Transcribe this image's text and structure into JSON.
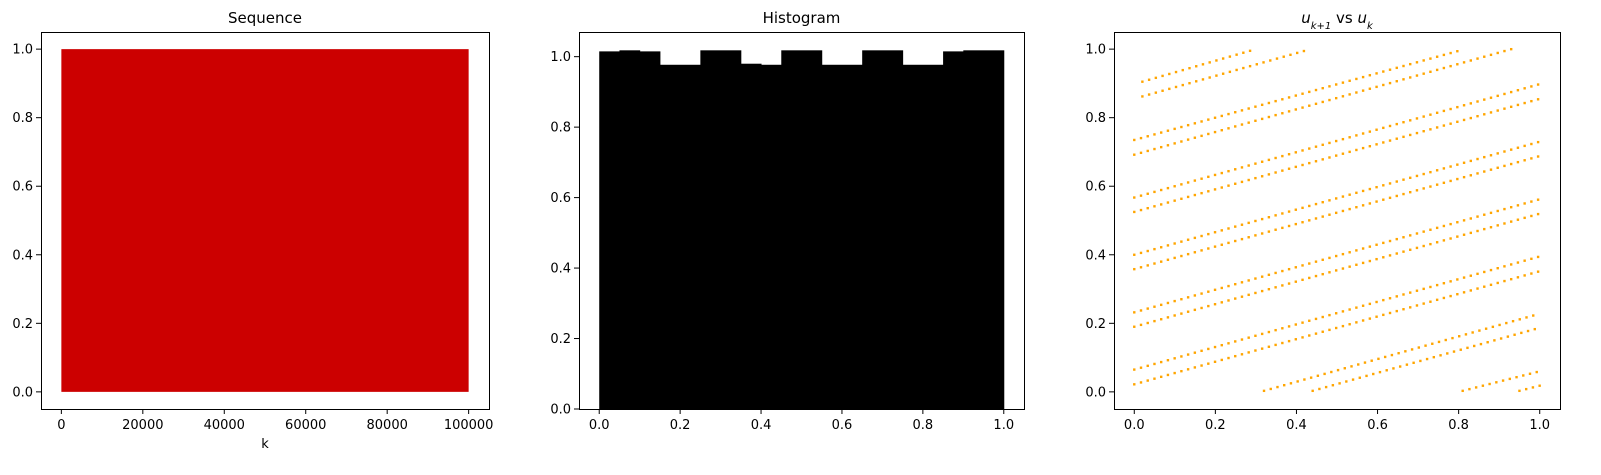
{
  "chart_data": [
    {
      "type": "area",
      "title": "Sequence",
      "xlabel": "k",
      "ylabel": "",
      "xlim": [
        -5000,
        105000
      ],
      "ylim": [
        -0.05,
        1.05
      ],
      "xticks": [
        0,
        20000,
        40000,
        60000,
        80000,
        100000
      ],
      "xtick_labels": [
        "0",
        "20000",
        "40000",
        "60000",
        "80000",
        "100000"
      ],
      "yticks": [
        0.0,
        0.2,
        0.4,
        0.6,
        0.8,
        1.0
      ],
      "ytick_labels": [
        "0.0",
        "0.2",
        "0.4",
        "0.6",
        "0.8",
        "1.0"
      ],
      "series": [
        {
          "x_range": [
            0,
            100000
          ],
          "y_range": [
            0.0,
            1.0
          ]
        }
      ],
      "color": "#cc0000",
      "grid": false
    },
    {
      "type": "bar",
      "title": "Histogram",
      "xlabel": "",
      "ylabel": "",
      "xlim": [
        -0.05,
        1.05
      ],
      "ylim": [
        0.0,
        1.07
      ],
      "xticks": [
        0.0,
        0.2,
        0.4,
        0.6,
        0.8,
        1.0
      ],
      "xtick_labels": [
        "0.0",
        "0.2",
        "0.4",
        "0.6",
        "0.8",
        "1.0"
      ],
      "yticks": [
        0.0,
        0.2,
        0.4,
        0.6,
        0.8,
        1.0
      ],
      "ytick_labels": [
        "0.0",
        "0.2",
        "0.4",
        "0.6",
        "0.8",
        "1.0"
      ],
      "bins": [
        [
          0.0,
          0.05,
          1.015
        ],
        [
          0.05,
          0.1,
          1.018
        ],
        [
          0.1,
          0.15,
          1.015
        ],
        [
          0.15,
          0.25,
          0.977
        ],
        [
          0.25,
          0.35,
          1.018
        ],
        [
          0.35,
          0.4,
          0.98
        ],
        [
          0.4,
          0.45,
          0.977
        ],
        [
          0.45,
          0.55,
          1.018
        ],
        [
          0.55,
          0.65,
          0.977
        ],
        [
          0.65,
          0.75,
          1.018
        ],
        [
          0.75,
          0.85,
          0.977
        ],
        [
          0.85,
          0.9,
          1.015
        ],
        [
          0.9,
          1.0,
          1.018
        ]
      ],
      "color": "#000000",
      "grid": false
    },
    {
      "type": "scatter",
      "title_html": "u<tspan baseline-shift=\"sub\" font-size=\"10\">k+1</tspan> vs u<tspan baseline-shift=\"sub\" font-size=\"10\">k</tspan>",
      "title_parts": [
        "u",
        "k+1",
        " vs ",
        "u",
        "k"
      ],
      "xlabel": "",
      "ylabel": "",
      "xlim": [
        -0.05,
        1.05
      ],
      "ylim": [
        -0.05,
        1.05
      ],
      "xticks": [
        0.0,
        0.2,
        0.4,
        0.6,
        0.8,
        1.0
      ],
      "xtick_labels": [
        "0.0",
        "0.2",
        "0.4",
        "0.6",
        "0.8",
        "1.0"
      ],
      "yticks": [
        0.0,
        0.2,
        0.4,
        0.6,
        0.8,
        1.0
      ],
      "ytick_labels": [
        "0.0",
        "0.2",
        "0.4",
        "0.6",
        "0.8",
        "1.0"
      ],
      "segments": [
        {
          "x": [
            0.02,
            0.3
          ],
          "y": [
            0.905,
            1.0
          ]
        },
        {
          "x": [
            0.02,
            0.42
          ],
          "y": [
            0.862,
            0.995
          ]
        },
        {
          "x": [
            0.0,
            0.8
          ],
          "y": [
            0.735,
            0.995
          ]
        },
        {
          "x": [
            0.0,
            0.93
          ],
          "y": [
            0.692,
            1.0
          ]
        },
        {
          "x": [
            0.0,
            1.0
          ],
          "y": [
            0.567,
            0.898
          ]
        },
        {
          "x": [
            0.0,
            1.0
          ],
          "y": [
            0.525,
            0.855
          ]
        },
        {
          "x": [
            0.0,
            1.0
          ],
          "y": [
            0.4,
            0.73
          ]
        },
        {
          "x": [
            0.0,
            1.0
          ],
          "y": [
            0.358,
            0.688
          ]
        },
        {
          "x": [
            0.0,
            1.0
          ],
          "y": [
            0.232,
            0.562
          ]
        },
        {
          "x": [
            0.0,
            1.0
          ],
          "y": [
            0.19,
            0.52
          ]
        },
        {
          "x": [
            0.0,
            1.0
          ],
          "y": [
            0.065,
            0.395
          ]
        },
        {
          "x": [
            0.0,
            1.0
          ],
          "y": [
            0.022,
            0.352
          ]
        },
        {
          "x": [
            0.32,
            1.0
          ],
          "y": [
            0.003,
            0.228
          ]
        },
        {
          "x": [
            0.44,
            1.0
          ],
          "y": [
            0.003,
            0.187
          ]
        },
        {
          "x": [
            0.81,
            1.0
          ],
          "y": [
            0.003,
            0.06
          ]
        },
        {
          "x": [
            0.95,
            1.0
          ],
          "y": [
            0.003,
            0.018
          ]
        }
      ],
      "color": "#ffa500",
      "grid": false
    }
  ]
}
